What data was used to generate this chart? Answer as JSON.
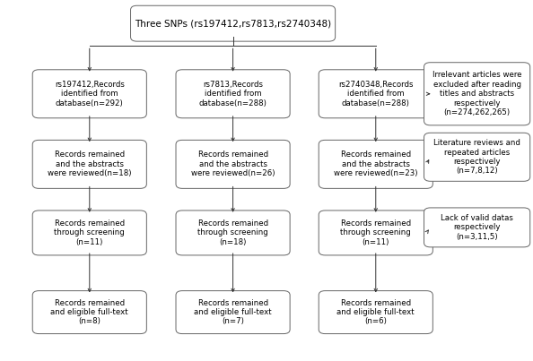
{
  "title": "Three SNPs (rs197412,rs7813,rs2740348)",
  "box_left1": "rs197412,Records\nidentified from\ndatabase(n=292)",
  "box_left2": "Records remained\nand the abstracts\nwere reviewed(n=18)",
  "box_left3": "Records remained\nthrough screening\n(n=11)",
  "box_left4": "Records remained\nand eligible full-text\n(n=8)",
  "box_mid1": "rs7813,Records\nidentified from\ndatabase(n=288)",
  "box_mid2": "Records remained\nand the abstracts\nwere reviewed(n=26)",
  "box_mid3": "Records remained\nthrough screening\n(n=18)",
  "box_mid4": "Records remained\nand eligible full-text\n(n=7)",
  "box_right1": "rs2740348,Records\nidentified from\ndatabase(n=288)",
  "box_right2": "Records remained\nand the abstracts\nwere reviewed(n=23)",
  "box_right3": "Records remained\nthrough screening\n(n=11)",
  "box_right4": "Records remained\nand eligible full-text\n(n=6)",
  "box_side1": "Irrelevant articles were\nexcluded after reading\ntitles and abstracts\nrespectively\n(n=274,262,265)",
  "box_side2": "Literature reviews and\nrepeated articles\nrespectively\n(n=7,8,12)",
  "box_side3": "Lack of valid datas\nrespectively\n(n=3,11,5)",
  "bg_color": "#ffffff",
  "box_edge_color": "#666666",
  "text_color": "#000000",
  "arrow_color": "#333333",
  "fontsize": 6.2,
  "title_fontsize": 7.5
}
